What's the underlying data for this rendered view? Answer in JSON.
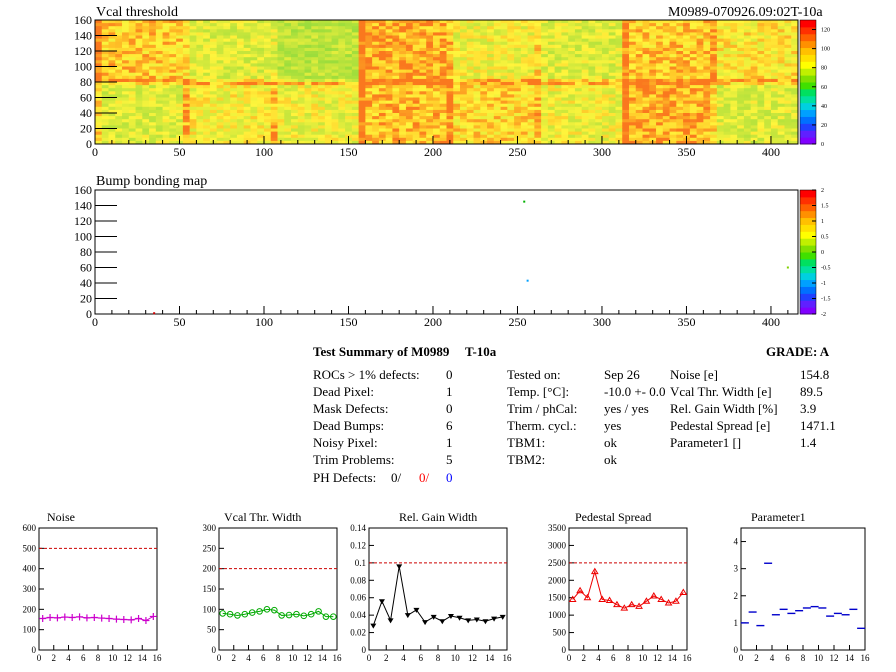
{
  "header": {
    "map_title": "Vcal threshold",
    "module_id": "M0989-070926.09:02T-10a",
    "bump_title": "Bump bonding map"
  },
  "summary": {
    "title": "Test Summary of M0989",
    "test": "T-10a",
    "grade": "GRADE:  A",
    "left": [
      {
        "label": "ROCs > 1% defects:",
        "value": "0"
      },
      {
        "label": "Dead Pixel:",
        "value": "1"
      },
      {
        "label": "Mask Defects:",
        "value": "0"
      },
      {
        "label": "Dead Bumps:",
        "value": "6"
      },
      {
        "label": "Noisy Pixel:",
        "value": "1"
      },
      {
        "label": "Trim Problems:",
        "value": "5"
      }
    ],
    "ph_label": "PH Defects:",
    "ph_values": [
      "0/",
      "0/",
      "0"
    ],
    "ph_colors": [
      "#000000",
      "#ff0000",
      "#0000ff"
    ],
    "mid": [
      {
        "label": "Tested on:",
        "value": "Sep 26"
      },
      {
        "label": "Temp. [°C]:",
        "value": "-10.0 +- 0.0"
      },
      {
        "label": "Trim / phCal:",
        "value": "yes / yes"
      },
      {
        "label": "Therm. cycl.:",
        "value": "yes"
      },
      {
        "label": "TBM1:",
        "value": "ok"
      },
      {
        "label": "TBM2:",
        "value": "ok"
      }
    ],
    "right": [
      {
        "label": "Noise [e]",
        "value": "154.8"
      },
      {
        "label": "Vcal Thr. Width [e]",
        "value": "89.5"
      },
      {
        "label": "Rel. Gain Width [%]",
        "value": "3.9"
      },
      {
        "label": "Pedestal Spread [e]",
        "value": "1471.1"
      },
      {
        "label": "Parameter1 []",
        "value": "1.4"
      }
    ]
  },
  "chart_data": [
    {
      "type": "heatmap",
      "title": "Vcal threshold",
      "xlim": [
        0,
        416
      ],
      "ylim": [
        0,
        160
      ],
      "xticks": [
        "0",
        "50",
        "100",
        "150",
        "200",
        "250",
        "300",
        "350",
        "400"
      ],
      "yticks": [
        "0",
        "20",
        "40",
        "60",
        "80",
        "100",
        "120",
        "140",
        "160"
      ],
      "colorbar": {
        "range": [
          0,
          130
        ],
        "ticks": [
          "0",
          "20",
          "40",
          "60",
          "80",
          "100",
          "120"
        ]
      }
    },
    {
      "type": "heatmap",
      "title": "Bump bonding map",
      "xlim": [
        0,
        416
      ],
      "ylim": [
        0,
        160
      ],
      "xticks": [
        "0",
        "50",
        "100",
        "150",
        "200",
        "250",
        "300",
        "350",
        "400"
      ],
      "yticks": [
        "0",
        "20",
        "40",
        "60",
        "80",
        "100",
        "120",
        "140",
        "160"
      ],
      "colorbar": {
        "range": [
          -2,
          2
        ],
        "ticks": [
          "-2",
          "-1.5",
          "-1",
          "-0.5",
          "0",
          "0.5",
          "1",
          "1.5",
          "2"
        ]
      },
      "points": [
        {
          "x": 35,
          "y": 1,
          "color": "#cc0000"
        },
        {
          "x": 254,
          "y": 145,
          "color": "#00b000"
        },
        {
          "x": 256,
          "y": 43,
          "color": "#00a0ff"
        },
        {
          "x": 410,
          "y": 60,
          "color": "#80d000"
        }
      ]
    },
    {
      "type": "scatter",
      "title": "Noise",
      "color": "#cc00cc",
      "marker": "plus",
      "x": [
        0,
        1,
        2,
        3,
        4,
        5,
        6,
        7,
        8,
        9,
        10,
        11,
        12,
        13,
        14,
        15
      ],
      "values": [
        155,
        160,
        158,
        162,
        160,
        163,
        158,
        160,
        157,
        155,
        152,
        150,
        148,
        155,
        145,
        165
      ],
      "ylim": [
        0,
        600
      ],
      "yticks": [
        "0",
        "100",
        "200",
        "300",
        "400",
        "500",
        "600"
      ],
      "xticks": [
        "0",
        "2",
        "4",
        "6",
        "8",
        "10",
        "12",
        "14",
        "16"
      ],
      "threshold": 500
    },
    {
      "type": "line",
      "title": "Vcal Thr. Width",
      "color": "#00aa00",
      "marker": "circle",
      "x": [
        0,
        1,
        2,
        3,
        4,
        5,
        6,
        7,
        8,
        9,
        10,
        11,
        12,
        13,
        14,
        15
      ],
      "values": [
        90,
        88,
        85,
        88,
        92,
        95,
        100,
        98,
        85,
        86,
        88,
        84,
        88,
        95,
        82,
        82
      ],
      "ylim": [
        0,
        300
      ],
      "yticks": [
        "0",
        "50",
        "100",
        "150",
        "200",
        "250",
        "300"
      ],
      "xticks": [
        "0",
        "2",
        "4",
        "6",
        "8",
        "10",
        "12",
        "14",
        "16"
      ],
      "threshold": 200
    },
    {
      "type": "line",
      "title": "Rel. Gain Width",
      "color": "#000000",
      "marker": "triangle-down",
      "x": [
        0,
        1,
        2,
        3,
        4,
        5,
        6,
        7,
        8,
        9,
        10,
        11,
        12,
        13,
        14,
        15
      ],
      "values": [
        0.028,
        0.056,
        0.034,
        0.096,
        0.04,
        0.046,
        0.032,
        0.038,
        0.033,
        0.039,
        0.037,
        0.034,
        0.035,
        0.033,
        0.036,
        0.038
      ],
      "ylim": [
        0,
        0.14
      ],
      "yticks": [
        "0",
        "0.02",
        "0.04",
        "0.06",
        "0.08",
        "0.1",
        "0.12",
        "0.14"
      ],
      "xticks": [
        "0",
        "2",
        "4",
        "6",
        "8",
        "10",
        "12",
        "14",
        "16"
      ],
      "threshold": 0.1
    },
    {
      "type": "line",
      "title": "Pedestal Spread",
      "color": "#ee0000",
      "marker": "triangle-up",
      "x": [
        0,
        1,
        2,
        3,
        4,
        5,
        6,
        7,
        8,
        9,
        10,
        11,
        12,
        13,
        14,
        15
      ],
      "values": [
        1450,
        1700,
        1500,
        2250,
        1450,
        1420,
        1300,
        1200,
        1300,
        1250,
        1400,
        1550,
        1450,
        1350,
        1400,
        1650
      ],
      "ylim": [
        0,
        3500
      ],
      "yticks": [
        "0",
        "500",
        "1000",
        "1500",
        "2000",
        "2500",
        "3000",
        "3500"
      ],
      "xticks": [
        "0",
        "2",
        "4",
        "6",
        "8",
        "10",
        "12",
        "14",
        "16"
      ],
      "threshold": 2500
    },
    {
      "type": "scatter",
      "title": "Parameter1",
      "color": "#0000cc",
      "marker": "hline",
      "x": [
        0,
        1,
        2,
        3,
        4,
        5,
        6,
        7,
        8,
        9,
        10,
        11,
        12,
        13,
        14,
        15
      ],
      "values": [
        1.0,
        1.4,
        0.9,
        3.2,
        1.3,
        1.5,
        1.35,
        1.45,
        1.55,
        1.6,
        1.55,
        1.25,
        1.35,
        1.3,
        1.5,
        0.8
      ],
      "ylim": [
        0,
        4.5
      ],
      "yticks": [
        "0",
        "1",
        "2",
        "3",
        "4"
      ],
      "xticks": [
        "0",
        "2",
        "4",
        "6",
        "8",
        "10",
        "12",
        "14",
        "16"
      ]
    }
  ]
}
